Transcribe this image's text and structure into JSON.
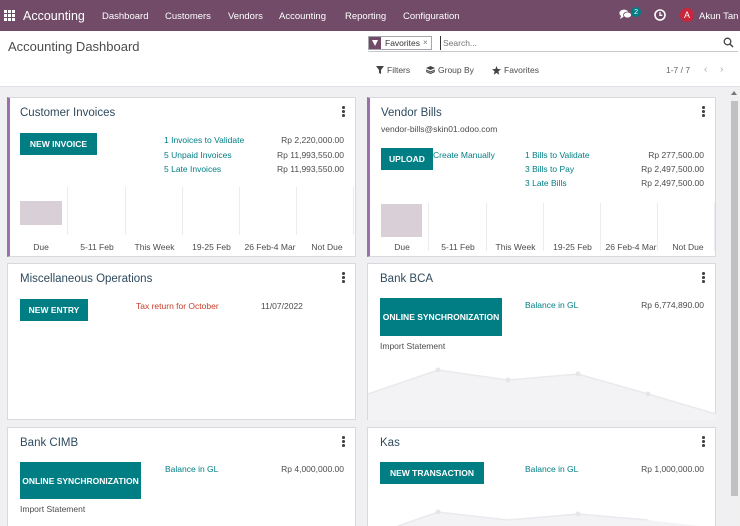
{
  "app": {
    "brand": "Accounting",
    "nav": [
      "Dashboard",
      "Customers",
      "Vendors",
      "Accounting",
      "Reporting",
      "Configuration"
    ],
    "chat_count": "2",
    "user_initial": "A",
    "user_name": "Akun Tan"
  },
  "control": {
    "title": "Accounting Dashboard",
    "facet": "Favorites",
    "facet_remove": "×",
    "search_placeholder": "Search...",
    "filters": "Filters",
    "group_by": "Group By",
    "favorites": "Favorites",
    "pager": "1-7 / 7",
    "prev": "‹",
    "next": "›"
  },
  "cards": {
    "customer_invoices": {
      "title": "Customer Invoices",
      "button": "NEW INVOICE",
      "rows": [
        {
          "label": "1 Invoices to Validate",
          "amount": "Rp 2,220,000.00"
        },
        {
          "label": "5 Unpaid Invoices",
          "amount": "Rp 11,993,550.00"
        },
        {
          "label": "5 Late Invoices",
          "amount": "Rp 11,993,550.00"
        }
      ],
      "chart": [
        "Due",
        "5-11 Feb",
        "This Week",
        "19-25 Feb",
        "26 Feb-4 Mar",
        "Not Due"
      ]
    },
    "vendor_bills": {
      "title": "Vendor Bills",
      "email": "vendor-bills@skin01.odoo.com",
      "button": "UPLOAD",
      "create": "Create Manually",
      "rows": [
        {
          "label": "1 Bills to Validate",
          "amount": "Rp 277,500.00"
        },
        {
          "label": "3 Bills to Pay",
          "amount": "Rp 2,497,500.00"
        },
        {
          "label": "3 Late Bills",
          "amount": "Rp 2,497,500.00"
        }
      ],
      "chart": [
        "Due",
        "5-11 Feb",
        "This Week",
        "19-25 Feb",
        "26 Feb-4 Mar",
        "Not Due"
      ]
    },
    "misc": {
      "title": "Miscellaneous Operations",
      "button": "NEW ENTRY",
      "tax": "Tax return for October",
      "date": "11/07/2022"
    },
    "bca": {
      "title": "Bank BCA",
      "button": "ONLINE SYNCHRONIZATION",
      "balance_label": "Balance in GL",
      "balance": "Rp 6,774,890.00",
      "import": "Import Statement"
    },
    "cimb": {
      "title": "Bank CIMB",
      "button": "ONLINE SYNCHRONIZATION",
      "balance_label": "Balance in GL",
      "balance": "Rp 4,000,000.00",
      "import": "Import Statement"
    },
    "kas": {
      "title": "Kas",
      "button": "NEW TRANSACTION",
      "balance_label": "Balance in GL",
      "balance": "Rp 1,000,000.00"
    }
  },
  "colors": {
    "primary": "#714b67",
    "teal": "#017e84"
  }
}
